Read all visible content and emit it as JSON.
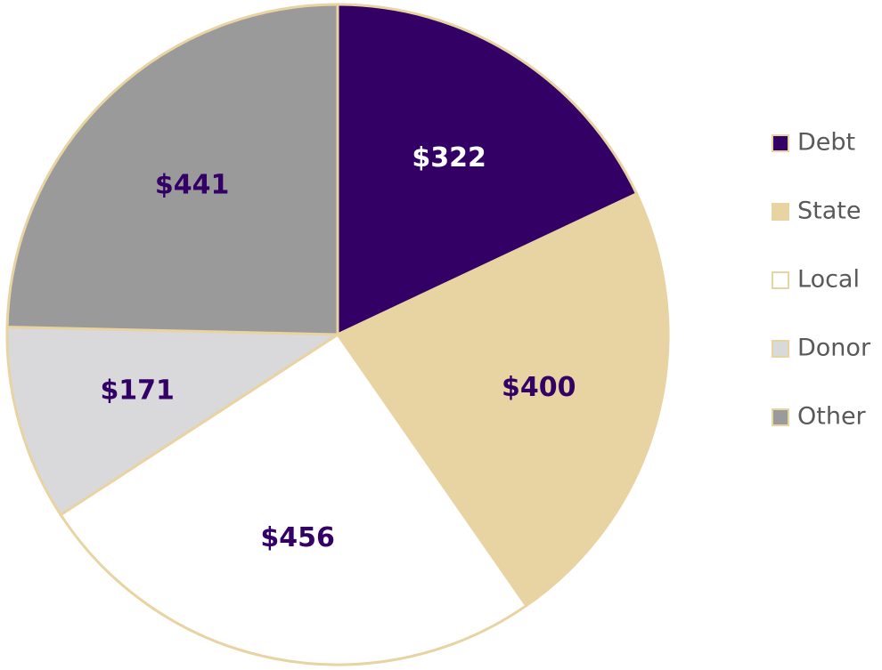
{
  "chart_data": {
    "type": "pie",
    "categories": [
      "Debt",
      "State",
      "Local",
      "Donor",
      "Other"
    ],
    "values": [
      322,
      400,
      456,
      171,
      441
    ],
    "value_labels": [
      "$322",
      "$400",
      "$456",
      "$171",
      "$441"
    ],
    "colors": [
      "#330066",
      "#e8d3a2",
      "#ffffff",
      "#d9d9db",
      "#9a9a9a"
    ],
    "label_colors": [
      "#ffffff",
      "#330066",
      "#330066",
      "#330066",
      "#330066"
    ],
    "edge_color": "#e8d3a2",
    "legend": "right"
  }
}
